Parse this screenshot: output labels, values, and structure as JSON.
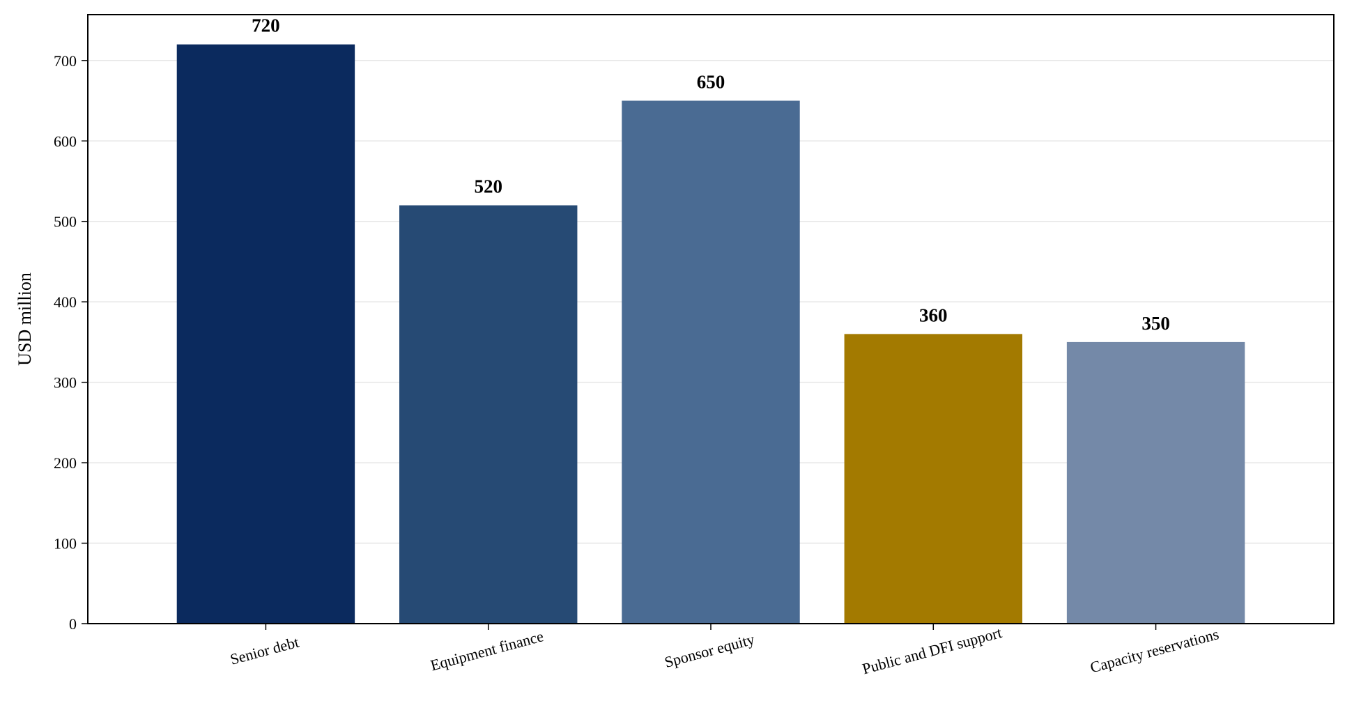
{
  "chart_data": {
    "type": "bar",
    "title": "",
    "xlabel": "",
    "ylabel": "USD million",
    "ylim": [
      0,
      757
    ],
    "yticks": [
      0,
      100,
      200,
      300,
      400,
      500,
      600,
      700
    ],
    "grid": "horizontal",
    "categories": [
      "Senior debt",
      "Equipment finance",
      "Sponsor equity",
      "Public and DFI support",
      "Capacity reservations"
    ],
    "values": [
      720,
      520,
      650,
      360,
      350
    ],
    "data_labels": [
      "720",
      "520",
      "650",
      "360",
      "350"
    ],
    "bar_colors": [
      "#0b2a5e",
      "#264a74",
      "#4a6b93",
      "#a37a00",
      "#7489a8"
    ],
    "x_tick_rotation_deg": 15
  }
}
